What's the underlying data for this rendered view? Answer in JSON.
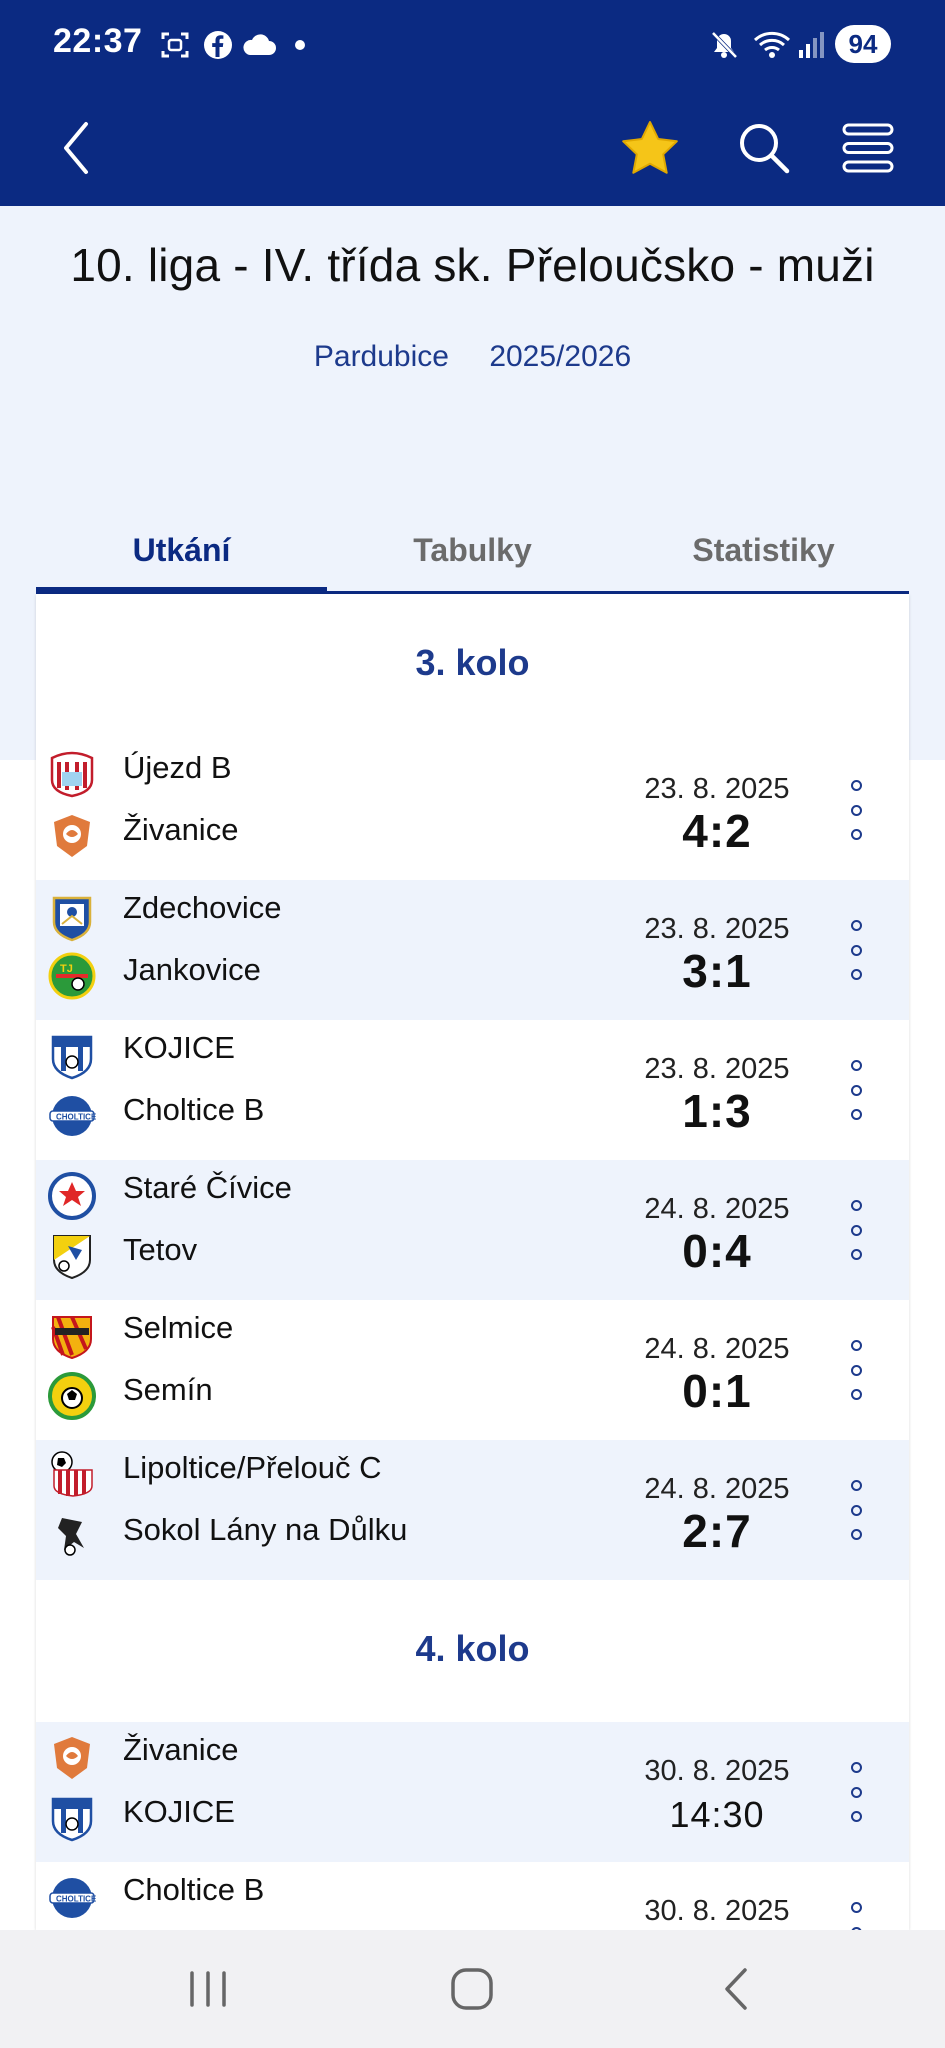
{
  "status_bar": {
    "time": "22:37",
    "battery": "94"
  },
  "app_bar": {
    "back_icon": "chevron-left-icon",
    "favorite_icon": "star-icon",
    "search_icon": "search-icon",
    "menu_icon": "menu-icon"
  },
  "league": {
    "title": "10. liga - IV. třída sk. Přeloučsko - muži",
    "region": "Pardubice",
    "season": "2025/2026"
  },
  "tabs": [
    {
      "label": "Utkání",
      "active": true
    },
    {
      "label": "Tabulky",
      "active": false
    },
    {
      "label": "Statistiky",
      "active": false
    }
  ],
  "rounds": [
    {
      "title": "3. kolo",
      "matches": [
        {
          "home": "Újezd B",
          "away": "Živanice",
          "date": "23. 8. 2025",
          "result": "4:2"
        },
        {
          "home": "Zdechovice",
          "away": "Jankovice",
          "date": "23. 8. 2025",
          "result": "3:1"
        },
        {
          "home": "KOJICE",
          "away": "Choltice B",
          "date": "23. 8. 2025",
          "result": "1:3"
        },
        {
          "home": "Staré Čívice",
          "away": "Tetov",
          "date": "24. 8. 2025",
          "result": "0:4"
        },
        {
          "home": "Selmice",
          "away": "Semín",
          "date": "24. 8. 2025",
          "result": "0:1"
        },
        {
          "home": "Lipoltice/Přelouč C",
          "away": "Sokol Lány na Důlku",
          "date": "24. 8. 2025",
          "result": "2:7"
        }
      ]
    },
    {
      "title": "4. kolo",
      "matches": [
        {
          "home": "Živanice",
          "away": "KOJICE",
          "date": "30. 8. 2025",
          "result": "14:30"
        },
        {
          "home": "Choltice B",
          "away": "",
          "date": "30. 8. 2025",
          "result": ""
        }
      ]
    }
  ],
  "colors": {
    "primary": "#0b2a82",
    "accent_text": "#1d3a8c",
    "row_alt": "#eef3fc",
    "star": "#f5c518"
  }
}
